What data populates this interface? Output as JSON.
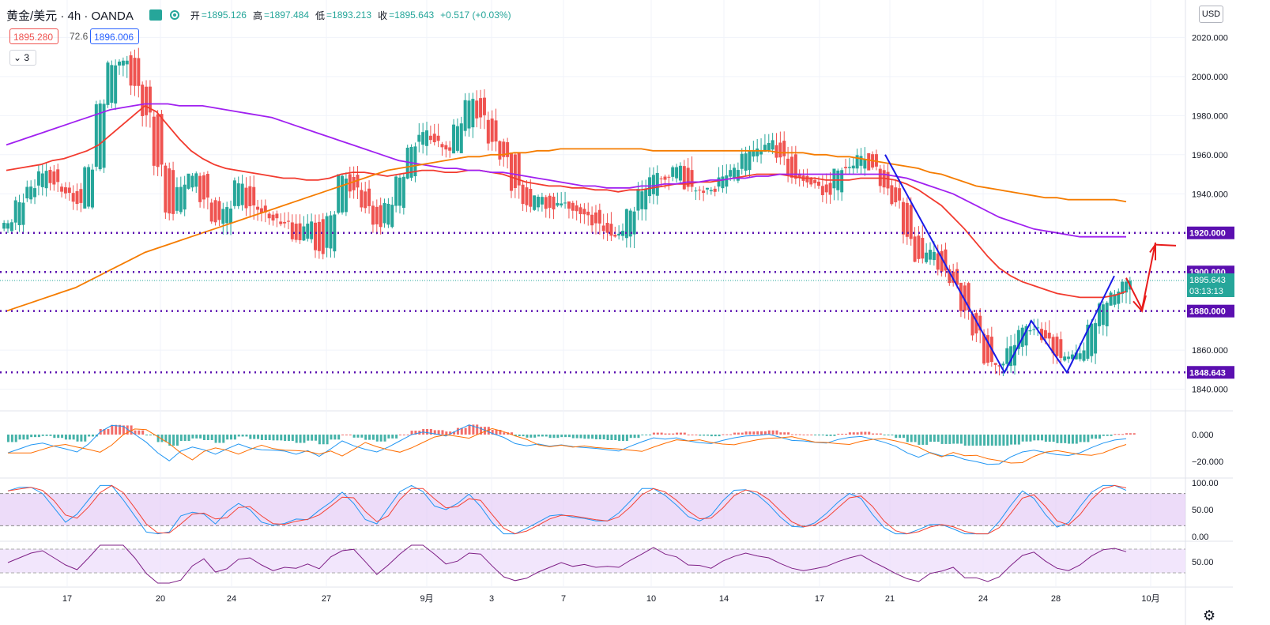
{
  "header": {
    "symbol": "黄金/美元 · 4h · OANDA",
    "open_label": "开",
    "open": "=1895.126",
    "high_label": "高",
    "high": "=1897.484",
    "low_label": "低",
    "low": "=1893.213",
    "close_label": "收",
    "close": "=1895.643",
    "change": "+0.517 (+0.03%)",
    "sell_price": "1895.280",
    "spread": "72.6",
    "buy_price": "1896.006",
    "indicator_count": "3",
    "currency": "USD"
  },
  "icons": {
    "visibility": "eye-icon",
    "settings": "gear-icon"
  },
  "colors": {
    "up": "#26a69a",
    "down": "#ef5350",
    "ma_red": "#f23a2e",
    "ma_purple": "#a020f0",
    "ma_orange": "#f57c00",
    "level_line": "#5b0fb0",
    "pattern": "#1a1ae6",
    "arrow": "#e81c1c"
  },
  "chart_data": [
    {
      "type": "candlestick",
      "panel": "price",
      "y_ticks": [
        "2020.000",
        "2000.000",
        "1980.000",
        "1960.000",
        "1940.000",
        "1860.000",
        "1840.000"
      ],
      "ylim": [
        1835,
        2025
      ],
      "x_ticks": [
        "17",
        "20",
        "24",
        "27",
        "9月",
        "3",
        "7",
        "10",
        "14",
        "17",
        "21",
        "24",
        "28",
        "10月"
      ],
      "horizontal_levels": [
        "1920.000",
        "1900.000",
        "1880.000",
        "1848.643"
      ],
      "last_price": "1895.643",
      "countdown": "03:13:13",
      "close_path": [
        1925,
        1935,
        1945,
        1950,
        1945,
        1940,
        1935,
        1955,
        1985,
        2005,
        2008,
        1995,
        1982,
        1955,
        1930,
        1945,
        1948,
        1938,
        1925,
        1935,
        1945,
        1935,
        1930,
        1928,
        1925,
        1918,
        1925,
        1912,
        1930,
        1950,
        1940,
        1932,
        1925,
        1935,
        1950,
        1965,
        1972,
        1968,
        1962,
        1975,
        1988,
        1980,
        1968,
        1958,
        1942,
        1935,
        1938,
        1932,
        1935,
        1930,
        1928,
        1925,
        1922,
        1918,
        1930,
        1940,
        1950,
        1948,
        1952,
        1945,
        1942,
        1940,
        1948,
        1955,
        1960,
        1962,
        1965,
        1958,
        1950,
        1948,
        1945,
        1942,
        1950,
        1955,
        1958,
        1952,
        1945,
        1935,
        1918,
        1905,
        1912,
        1900,
        1895,
        1880,
        1868,
        1855,
        1850,
        1862,
        1870,
        1872,
        1865,
        1858,
        1855,
        1860,
        1872,
        1882,
        1890,
        1895
      ],
      "series": [
        {
          "name": "",
          "color": "#f23a2e",
          "values": [
            1952,
            1953,
            1954,
            1955,
            1957,
            1958,
            1960,
            1962,
            1965,
            1970,
            1975,
            1980,
            1985,
            1982,
            1975,
            1968,
            1962,
            1958,
            1955,
            1953,
            1952,
            1951,
            1950,
            1949,
            1948,
            1948,
            1947,
            1947,
            1948,
            1950,
            1951,
            1951,
            1950,
            1949,
            1950,
            1951,
            1952,
            1952,
            1951,
            1951,
            1952,
            1952,
            1951,
            1950,
            1948,
            1946,
            1945,
            1944,
            1944,
            1943,
            1943,
            1942,
            1942,
            1941,
            1942,
            1942,
            1943,
            1944,
            1945,
            1945,
            1946,
            1946,
            1947,
            1948,
            1949,
            1950,
            1950,
            1950,
            1949,
            1948,
            1948,
            1947,
            1947,
            1947,
            1948,
            1948,
            1948,
            1947,
            1945,
            1942,
            1938,
            1934,
            1928,
            1922,
            1915,
            1908,
            1902,
            1898,
            1895,
            1893,
            1891,
            1889,
            1888,
            1887,
            1887,
            1887,
            1888,
            1890
          ]
        },
        {
          "name": "",
          "color": "#a020f0",
          "values": [
            1965,
            1967,
            1969,
            1971,
            1973,
            1975,
            1977,
            1979,
            1981,
            1983,
            1984,
            1985,
            1986,
            1986,
            1986,
            1985,
            1985,
            1985,
            1984,
            1983,
            1982,
            1981,
            1980,
            1979,
            1977,
            1975,
            1973,
            1971,
            1969,
            1967,
            1965,
            1963,
            1961,
            1959,
            1957,
            1956,
            1955,
            1954,
            1953,
            1953,
            1952,
            1952,
            1951,
            1951,
            1950,
            1949,
            1948,
            1947,
            1946,
            1945,
            1944,
            1944,
            1943,
            1943,
            1943,
            1944,
            1944,
            1945,
            1945,
            1946,
            1946,
            1947,
            1947,
            1948,
            1948,
            1949,
            1949,
            1950,
            1950,
            1950,
            1950,
            1950,
            1950,
            1950,
            1950,
            1950,
            1950,
            1949,
            1948,
            1946,
            1944,
            1942,
            1940,
            1937,
            1934,
            1931,
            1928,
            1926,
            1924,
            1922,
            1921,
            1920,
            1919,
            1918,
            1918,
            1918,
            1918,
            1918
          ]
        },
        {
          "name": "",
          "color": "#f57c00",
          "values": [
            1880,
            1882,
            1884,
            1886,
            1888,
            1890,
            1892,
            1895,
            1898,
            1901,
            1904,
            1907,
            1910,
            1912,
            1914,
            1916,
            1918,
            1920,
            1922,
            1924,
            1926,
            1928,
            1930,
            1932,
            1934,
            1936,
            1938,
            1940,
            1942,
            1944,
            1946,
            1948,
            1950,
            1952,
            1953,
            1954,
            1955,
            1956,
            1957,
            1958,
            1959,
            1959,
            1960,
            1960,
            1961,
            1961,
            1962,
            1962,
            1963,
            1963,
            1963,
            1963,
            1963,
            1963,
            1963,
            1963,
            1962,
            1962,
            1962,
            1962,
            1962,
            1962,
            1962,
            1962,
            1962,
            1962,
            1962,
            1961,
            1961,
            1961,
            1960,
            1960,
            1959,
            1959,
            1958,
            1957,
            1956,
            1955,
            1954,
            1953,
            1951,
            1950,
            1948,
            1946,
            1944,
            1943,
            1942,
            1941,
            1940,
            1939,
            1938,
            1938,
            1937,
            1937,
            1937,
            1937,
            1937,
            1936
          ]
        }
      ],
      "pattern_points": [
        [
          1960,
          0.81
        ],
        [
          1912,
          0.85
        ],
        [
          1848.6,
          0.86
        ],
        [
          1875,
          0.87
        ],
        [
          1848.6,
          0.88
        ],
        [
          1898,
          0.9
        ]
      ]
    },
    {
      "type": "histogram+line",
      "panel": "macd",
      "y_ticks": [
        "0.000",
        "−20.000"
      ]
    },
    {
      "type": "line",
      "panel": "stochastic",
      "y_ticks": [
        "100.00",
        "50.00",
        "0.00"
      ]
    },
    {
      "type": "line",
      "panel": "rsi",
      "y_ticks": [
        "50.00"
      ]
    }
  ]
}
